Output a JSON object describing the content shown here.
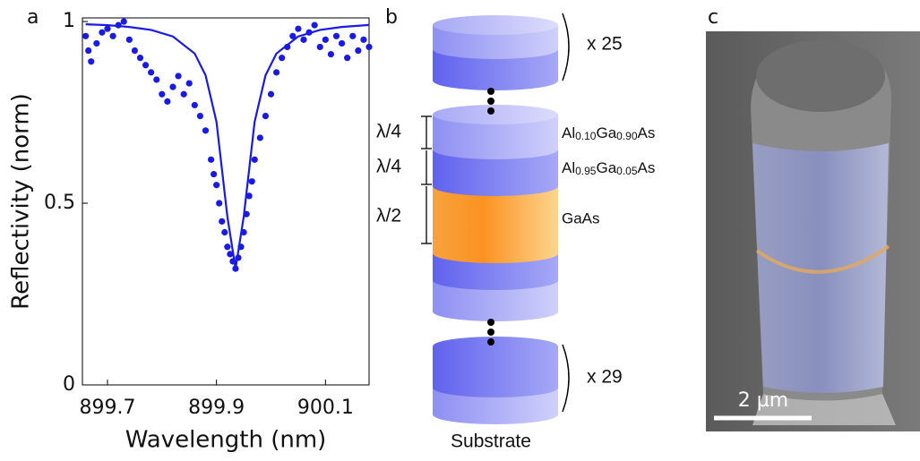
{
  "chart_data": {
    "type": "scatter",
    "panel_label": "a",
    "x_label": "Wavelength (nm)",
    "y_label": "Reflectivity (norm)",
    "xlim": [
      899.654,
      900.18
    ],
    "ylim": [
      0,
      1.01
    ],
    "xticks": [
      899.7,
      899.9,
      900.1
    ],
    "yticks": [
      0,
      0.5,
      1
    ],
    "series": [
      {
        "type": "scatter",
        "color": "#1a1ae6",
        "x": [
          899.66,
          899.665,
          899.67,
          899.68,
          899.69,
          899.7,
          899.71,
          899.72,
          899.73,
          899.74,
          899.75,
          899.76,
          899.77,
          899.78,
          899.79,
          899.8,
          899.81,
          899.82,
          899.83,
          899.84,
          899.85,
          899.86,
          899.87,
          899.88,
          899.89,
          899.895,
          899.9,
          899.905,
          899.91,
          899.915,
          899.92,
          899.925,
          899.93,
          899.935,
          899.94,
          899.945,
          899.95,
          899.955,
          899.96,
          899.965,
          899.97,
          899.98,
          899.99,
          900.0,
          900.01,
          900.02,
          900.03,
          900.04,
          900.05,
          900.06,
          900.07,
          900.08,
          900.09,
          900.1,
          900.11,
          900.12,
          900.13,
          900.14,
          900.15,
          900.16,
          900.17,
          900.18
        ],
        "values": [
          0.96,
          0.92,
          0.89,
          0.94,
          0.97,
          0.98,
          0.96,
          0.99,
          1.0,
          0.95,
          0.92,
          0.9,
          0.88,
          0.86,
          0.84,
          0.8,
          0.78,
          0.82,
          0.85,
          0.8,
          0.83,
          0.77,
          0.74,
          0.7,
          0.62,
          0.58,
          0.55,
          0.5,
          0.45,
          0.42,
          0.38,
          0.36,
          0.34,
          0.32,
          0.35,
          0.38,
          0.42,
          0.47,
          0.52,
          0.56,
          0.62,
          0.68,
          0.74,
          0.8,
          0.86,
          0.9,
          0.93,
          0.96,
          0.98,
          0.95,
          0.97,
          0.99,
          0.93,
          0.95,
          0.91,
          0.96,
          0.94,
          0.9,
          0.96,
          0.92,
          0.95,
          0.93
        ]
      },
      {
        "type": "line",
        "color": "#1a1ae6",
        "x": [
          899.66,
          899.7,
          899.74,
          899.78,
          899.82,
          899.86,
          899.88,
          899.9,
          899.92,
          899.935,
          899.95,
          899.97,
          899.99,
          900.01,
          900.05,
          900.09,
          900.13,
          900.18
        ],
        "values": [
          0.9925,
          0.99,
          0.985,
          0.977,
          0.959,
          0.912,
          0.852,
          0.724,
          0.463,
          0.32,
          0.463,
          0.724,
          0.852,
          0.912,
          0.959,
          0.977,
          0.985,
          0.9906
        ]
      }
    ]
  },
  "panel_b": {
    "label": "b",
    "top_repeat": "x 25",
    "bottom_repeat": "x 29",
    "thickness_labels": [
      "λ/4",
      "λ/4",
      "λ/2"
    ],
    "layers": [
      [
        "Al",
        "0.10",
        "Ga",
        "0.90",
        "As"
      ],
      [
        "Al",
        "0.95",
        "Ga",
        "0.05",
        "As"
      ],
      [
        "GaAs"
      ]
    ],
    "substrate": "Substrate"
  },
  "panel_c": {
    "label": "c",
    "scale_bar": "2 µm"
  }
}
